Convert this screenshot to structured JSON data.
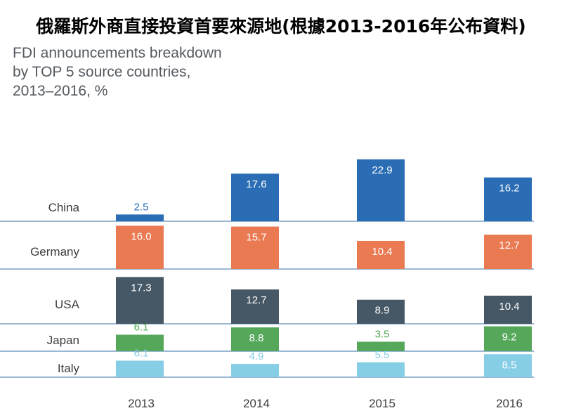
{
  "header": {
    "title": "俄羅斯外商直接投資首要來源地(根據2013-2016年公布資料)",
    "subtitle_lines": [
      "FDI announcements breakdown",
      "by TOP 5 source countries,",
      "2013–2016, %"
    ]
  },
  "colors": {
    "China": "#2a6db5",
    "Germany": "#ea7a52",
    "USA": "#465866",
    "Japan": "#55a85a",
    "Italy": "#86cde6",
    "divider": "#5e8db8",
    "china_outside_label": "#2a6db5",
    "japan_outside_label": "#55a85a"
  },
  "chart_data": {
    "type": "bar",
    "title": "FDI announcements breakdown by TOP 5 source countries, 2013–2016, %",
    "categories": [
      "2013",
      "2014",
      "2015",
      "2016"
    ],
    "series": [
      {
        "name": "China",
        "values": [
          2.5,
          17.6,
          22.9,
          16.2
        ]
      },
      {
        "name": "Germany",
        "values": [
          16.0,
          15.7,
          10.4,
          12.7
        ]
      },
      {
        "name": "USA",
        "values": [
          17.3,
          12.7,
          8.9,
          10.4
        ]
      },
      {
        "name": "Japan",
        "values": [
          6.1,
          8.8,
          3.5,
          9.2
        ]
      },
      {
        "name": "Italy",
        "values": [
          6.1,
          4.9,
          5.5,
          8.5
        ]
      }
    ],
    "xlabel": "",
    "ylabel": "%",
    "layout": "stacked-panels"
  }
}
